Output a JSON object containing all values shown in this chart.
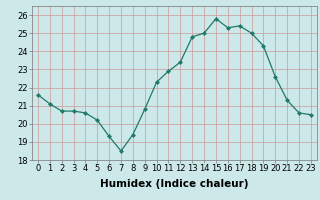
{
  "x": [
    0,
    1,
    2,
    3,
    4,
    5,
    6,
    7,
    8,
    9,
    10,
    11,
    12,
    13,
    14,
    15,
    16,
    17,
    18,
    19,
    20,
    21,
    22,
    23
  ],
  "y": [
    21.6,
    21.1,
    20.7,
    20.7,
    20.6,
    20.2,
    19.3,
    18.5,
    19.4,
    20.8,
    22.3,
    22.9,
    23.4,
    24.8,
    25.0,
    25.8,
    25.3,
    25.4,
    25.0,
    24.3,
    22.6,
    21.3,
    20.6,
    20.5
  ],
  "xlabel": "Humidex (Indice chaleur)",
  "xlim": [
    -0.5,
    23.5
  ],
  "ylim": [
    18,
    26.5
  ],
  "yticks": [
    18,
    19,
    20,
    21,
    22,
    23,
    24,
    25,
    26
  ],
  "line_color": "#1f7a6a",
  "marker": "D",
  "marker_size": 2.0,
  "bg_color": "#cce8e8",
  "grid_color": "#cc9999",
  "xlabel_fontsize": 7.5,
  "tick_fontsize": 6.0
}
